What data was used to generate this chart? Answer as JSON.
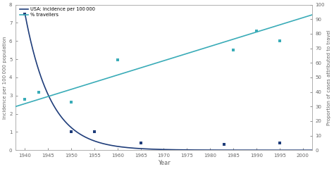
{
  "xlabel": "Year",
  "ylabel_left": "Incidence per 100 000 population",
  "ylabel_right": "Proportion of cases attributed to travel",
  "legend_entries": [
    "USA: incidence per 100 000",
    "% travellers"
  ],
  "line_color_dark": "#1f3d7a",
  "line_color_teal": "#3aacb8",
  "scatter_dark_x": [
    1940,
    1950,
    1955,
    1965,
    1983,
    1995
  ],
  "scatter_dark_y": [
    7.5,
    1.0,
    1.0,
    0.4,
    0.3,
    0.4
  ],
  "scatter_teal_x": [
    1940,
    1943,
    1950,
    1960,
    1985,
    1990,
    1995
  ],
  "scatter_teal_y": [
    35,
    40,
    33,
    62,
    69,
    82,
    75
  ],
  "curve_x_start": 1940,
  "curve_x_end": 2002,
  "curve_a": 7.5,
  "curve_decay": 0.18,
  "teal_line_x": [
    1938,
    2002
  ],
  "teal_line_y": [
    30,
    93
  ],
  "ylim_left": [
    0,
    8
  ],
  "ylim_right": [
    0,
    100
  ],
  "xlim": [
    1938,
    2002
  ],
  "xticks": [
    1940,
    1945,
    1950,
    1955,
    1960,
    1965,
    1970,
    1975,
    1980,
    1985,
    1990,
    1995,
    2000
  ],
  "yticks_left": [
    0,
    1,
    2,
    3,
    4,
    5,
    6,
    7,
    8
  ],
  "yticks_right": [
    0,
    10,
    20,
    30,
    40,
    50,
    60,
    70,
    80,
    90,
    100
  ],
  "background_color": "#ffffff",
  "spine_color": "#aaaaaa",
  "tick_color": "#666666"
}
